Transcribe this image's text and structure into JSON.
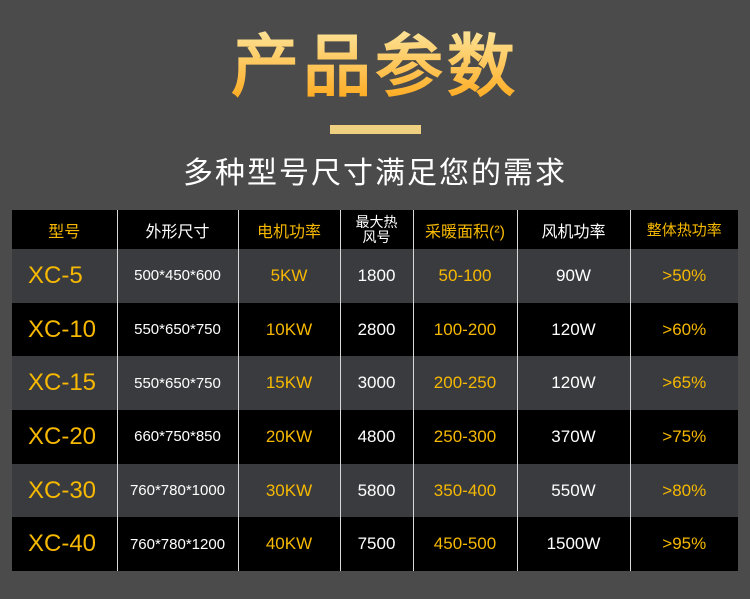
{
  "title": "产品参数",
  "subtitle": "多种型号尺寸满足您的需求",
  "colors": {
    "accent": "#f6b800",
    "background": "#4b4b4b"
  },
  "headers": [
    "型号",
    "外形尺寸",
    "电机功率",
    "最大热风号",
    "采暖面积(²)",
    "风机功率",
    "整体热功率"
  ],
  "rows": [
    [
      "XC-5",
      "500*450*600",
      "5KW",
      "1800",
      "50-100",
      "90W",
      ">50%"
    ],
    [
      "XC-10",
      "550*650*750",
      "10KW",
      "2800",
      "100-200",
      "120W",
      ">60%"
    ],
    [
      "XC-15",
      "550*650*750",
      "15KW",
      "3000",
      "200-250",
      "120W",
      ">65%"
    ],
    [
      "XC-20",
      "660*750*850",
      "20KW",
      "4800",
      "250-300",
      "370W",
      ">75%"
    ],
    [
      "XC-30",
      "760*780*1000",
      "30KW",
      "5800",
      "350-400",
      "550W",
      ">80%"
    ],
    [
      "XC-40",
      "760*780*1200",
      "40KW",
      "7500",
      "450-500",
      "1500W",
      ">95%"
    ]
  ]
}
